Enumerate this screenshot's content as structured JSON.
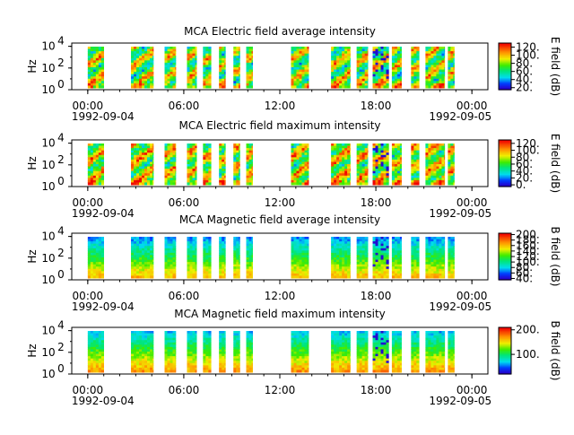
{
  "figure": {
    "x_ticks": [
      "00:00",
      "06:00",
      "12:00",
      "18:00",
      "00:00"
    ],
    "x_tick_hours": [
      0,
      6,
      12,
      18,
      24
    ],
    "date_start": "1992-09-04",
    "date_end": "1992-09-05",
    "xlim_hours": [
      -1,
      25
    ]
  },
  "chart_data": [
    {
      "type": "heatmap",
      "title": "MCA  Electric field average intensity",
      "ylabel": "Hz",
      "y_scale": "log",
      "y_ticks": [
        "10",
        "10",
        "10"
      ],
      "y_tick_exponents": [
        "0",
        "2",
        "4"
      ],
      "colorbar_label": "E field (dB)",
      "colorbar_ticks": [
        "20.",
        "40.",
        "60.",
        "80.",
        "100.",
        "120."
      ],
      "colorbar_range": [
        15,
        130
      ],
      "palette": "rainbow",
      "mean_level": 0.55,
      "data_intervals_hours": [
        [
          0,
          1
        ],
        [
          2.7,
          4.1
        ],
        [
          4.8,
          5.5
        ],
        [
          6.2,
          6.8
        ],
        [
          7.2,
          7.7
        ],
        [
          8.2,
          8.6
        ],
        [
          9.1,
          9.5
        ],
        [
          9.9,
          10.3
        ],
        [
          12.7,
          13.8
        ],
        [
          15.2,
          16.4
        ],
        [
          16.8,
          17.5
        ],
        [
          17.8,
          18.8
        ],
        [
          19.0,
          19.6
        ],
        [
          20.2,
          20.7
        ],
        [
          21.1,
          22.3
        ],
        [
          22.5,
          22.9
        ]
      ]
    },
    {
      "type": "heatmap",
      "title": "MCA  Electric field maximum intensity",
      "ylabel": "Hz",
      "y_scale": "log",
      "y_ticks": [
        "10",
        "10",
        "10"
      ],
      "y_tick_exponents": [
        "0",
        "2",
        "4"
      ],
      "colorbar_label": "E field (dB)",
      "colorbar_ticks": [
        "0.",
        "20.",
        "40.",
        "60.",
        "80.",
        "100.",
        "120."
      ],
      "colorbar_range": [
        -5,
        130
      ],
      "palette": "rainbow",
      "mean_level": 0.6,
      "data_intervals_hours": [
        [
          0,
          1
        ],
        [
          2.7,
          4.1
        ],
        [
          4.8,
          5.5
        ],
        [
          6.2,
          6.8
        ],
        [
          7.2,
          7.7
        ],
        [
          8.2,
          8.6
        ],
        [
          9.1,
          9.5
        ],
        [
          9.9,
          10.3
        ],
        [
          12.7,
          13.8
        ],
        [
          15.2,
          16.4
        ],
        [
          16.8,
          17.5
        ],
        [
          17.8,
          18.8
        ],
        [
          19.0,
          19.6
        ],
        [
          20.2,
          20.7
        ],
        [
          21.1,
          22.3
        ],
        [
          22.5,
          22.9
        ]
      ]
    },
    {
      "type": "heatmap",
      "title": "MCA  Magnetic field average intensity",
      "ylabel": "Hz",
      "y_scale": "log",
      "y_ticks": [
        "10",
        "10",
        "10"
      ],
      "y_tick_exponents": [
        "0",
        "2",
        "4"
      ],
      "colorbar_label": "B field (dB)",
      "colorbar_ticks": [
        "40.",
        "60.",
        "80.",
        "100.",
        "120.",
        "140.",
        "160.",
        "180.",
        "200."
      ],
      "colorbar_range": [
        35,
        205
      ],
      "palette": "rainbow",
      "mean_level": 0.45,
      "data_intervals_hours": [
        [
          0,
          1
        ],
        [
          2.7,
          4.1
        ],
        [
          4.8,
          5.5
        ],
        [
          6.2,
          6.8
        ],
        [
          7.2,
          7.7
        ],
        [
          8.2,
          8.6
        ],
        [
          9.1,
          9.5
        ],
        [
          9.9,
          10.3
        ],
        [
          12.7,
          13.8
        ],
        [
          15.2,
          16.4
        ],
        [
          16.8,
          17.5
        ],
        [
          17.8,
          18.8
        ],
        [
          19.0,
          19.6
        ],
        [
          20.2,
          20.7
        ],
        [
          21.1,
          22.3
        ],
        [
          22.5,
          22.9
        ]
      ]
    },
    {
      "type": "heatmap",
      "title": "MCA  Magnetic field maximum intensity",
      "ylabel": "Hz",
      "y_scale": "log",
      "y_ticks": [
        "10",
        "10",
        "10"
      ],
      "y_tick_exponents": [
        "0",
        "2",
        "4"
      ],
      "colorbar_label": "B field (dB)",
      "colorbar_ticks": [
        "100.",
        "200."
      ],
      "colorbar_range": [
        20,
        210
      ],
      "palette": "rainbow",
      "mean_level": 0.5,
      "data_intervals_hours": [
        [
          0,
          1
        ],
        [
          2.7,
          4.1
        ],
        [
          4.8,
          5.5
        ],
        [
          6.2,
          6.8
        ],
        [
          7.2,
          7.7
        ],
        [
          8.2,
          8.6
        ],
        [
          9.1,
          9.5
        ],
        [
          9.9,
          10.3
        ],
        [
          12.7,
          13.8
        ],
        [
          15.2,
          16.4
        ],
        [
          16.8,
          17.5
        ],
        [
          17.8,
          18.8
        ],
        [
          19.0,
          19.6
        ],
        [
          20.2,
          20.7
        ],
        [
          21.1,
          22.3
        ],
        [
          22.5,
          22.9
        ]
      ]
    }
  ]
}
